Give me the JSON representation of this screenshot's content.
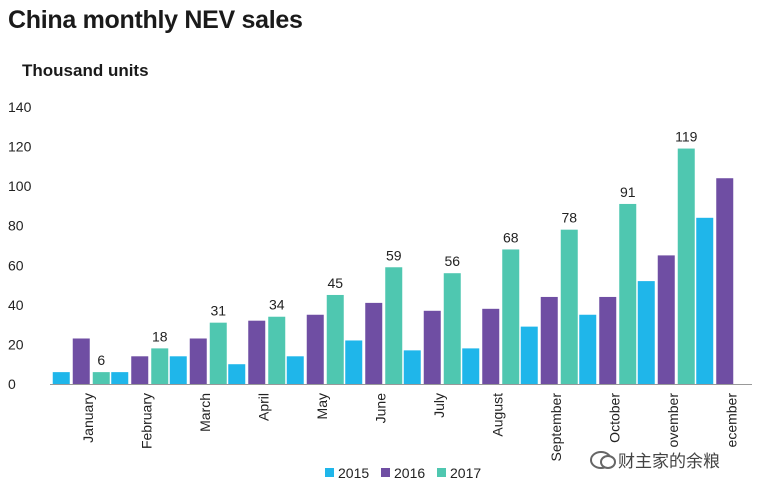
{
  "title": "China monthly NEV sales",
  "y_axis_label": "Thousand units",
  "watermark": "财主家的余粮",
  "chart_data": {
    "type": "bar",
    "title": "China monthly NEV sales",
    "ylabel": "Thousand units",
    "xlabel": "",
    "ylim": [
      0,
      140
    ],
    "yticks": [
      0,
      20,
      40,
      60,
      80,
      100,
      120,
      140
    ],
    "grid": false,
    "legend_position": "bottom-center",
    "categories": [
      "January",
      "February",
      "March",
      "April",
      "May",
      "June",
      "July",
      "August",
      "September",
      "October",
      "November",
      "December"
    ],
    "category_labels": [
      "January",
      "February",
      "March",
      "April",
      "May",
      "June",
      "July",
      "August",
      "September",
      "October",
      "ovember",
      "ecember"
    ],
    "series": [
      {
        "name": "2015",
        "color": "#1fb6ea",
        "values": [
          6,
          6,
          14,
          10,
          14,
          22,
          17,
          18,
          29,
          35,
          52,
          84
        ]
      },
      {
        "name": "2016",
        "color": "#6f4ea3",
        "values": [
          23,
          14,
          23,
          32,
          35,
          41,
          37,
          38,
          44,
          44,
          65,
          104
        ]
      },
      {
        "name": "2017",
        "color": "#4fc7b0",
        "values": [
          6,
          18,
          31,
          34,
          45,
          59,
          56,
          68,
          78,
          91,
          119,
          null
        ],
        "data_labels": true
      }
    ]
  }
}
